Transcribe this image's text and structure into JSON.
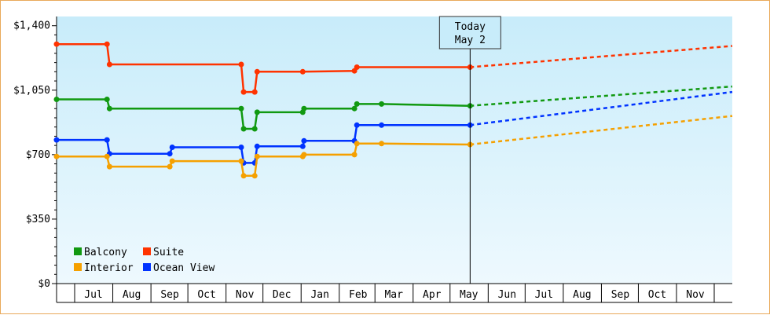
{
  "chart_data": {
    "type": "line",
    "today": {
      "line1": "Today",
      "line2": "May 2",
      "date": "2024-05-02"
    },
    "y_axis": {
      "min": 0,
      "max": 1450,
      "ticks": [
        0,
        350,
        700,
        1050,
        1400
      ],
      "tick_labels": [
        "$0",
        "$350",
        "$700",
        "$1,050",
        "$1,400"
      ]
    },
    "x_axis": {
      "range": [
        "2023-06-01",
        "2024-12-01"
      ],
      "months": [
        {
          "label": "Jul",
          "date": "2023-07-01"
        },
        {
          "label": "Aug",
          "date": "2023-08-01"
        },
        {
          "label": "Sep",
          "date": "2023-09-01"
        },
        {
          "label": "Oct",
          "date": "2023-10-01"
        },
        {
          "label": "Nov",
          "date": "2023-11-01"
        },
        {
          "label": "Dec",
          "date": "2023-12-01"
        },
        {
          "label": "Jan",
          "date": "2024-01-01"
        },
        {
          "label": "Feb",
          "date": "2024-02-01"
        },
        {
          "label": "Mar",
          "date": "2024-03-01"
        },
        {
          "label": "Apr",
          "date": "2024-04-01"
        },
        {
          "label": "May",
          "date": "2024-05-01"
        },
        {
          "label": "Jun",
          "date": "2024-06-01"
        },
        {
          "label": "Jul",
          "date": "2024-07-01"
        },
        {
          "label": "Aug",
          "date": "2024-08-01"
        },
        {
          "label": "Sep",
          "date": "2024-09-01"
        },
        {
          "label": "Oct",
          "date": "2024-10-01"
        },
        {
          "label": "Nov",
          "date": "2024-11-01"
        }
      ]
    },
    "legend": {
      "placement": "bottom-left"
    },
    "series": [
      {
        "name": "Suite",
        "color": "#ff3300",
        "points": [
          [
            "2023-06-01",
            1300
          ],
          [
            "2023-07-12",
            1300
          ],
          [
            "2023-07-14",
            1190
          ],
          [
            "2023-10-29",
            1190
          ],
          [
            "2023-10-31",
            1040
          ],
          [
            "2023-11-09",
            1040
          ],
          [
            "2023-11-11",
            1150
          ],
          [
            "2023-12-18",
            1150
          ],
          [
            "2024-01-29",
            1155
          ],
          [
            "2024-01-31",
            1175
          ],
          [
            "2024-05-02",
            1175
          ]
        ],
        "forecast": [
          [
            "2024-05-02",
            1175
          ],
          [
            "2024-12-01",
            1290
          ]
        ]
      },
      {
        "name": "Balcony",
        "color": "#119911",
        "points": [
          [
            "2023-06-01",
            1000
          ],
          [
            "2023-07-12",
            1000
          ],
          [
            "2023-07-14",
            950
          ],
          [
            "2023-10-29",
            950
          ],
          [
            "2023-10-31",
            840
          ],
          [
            "2023-11-09",
            840
          ],
          [
            "2023-11-11",
            930
          ],
          [
            "2023-12-18",
            930
          ],
          [
            "2023-12-19",
            950
          ],
          [
            "2024-01-29",
            950
          ],
          [
            "2024-01-31",
            975
          ],
          [
            "2024-02-20",
            975
          ],
          [
            "2024-05-02",
            965
          ]
        ],
        "forecast": [
          [
            "2024-05-02",
            965
          ],
          [
            "2024-12-01",
            1070
          ]
        ]
      },
      {
        "name": "Ocean View",
        "color": "#0033ff",
        "points": [
          [
            "2023-06-01",
            780
          ],
          [
            "2023-07-12",
            780
          ],
          [
            "2023-07-14",
            705
          ],
          [
            "2023-09-01",
            705
          ],
          [
            "2023-09-03",
            740
          ],
          [
            "2023-10-29",
            740
          ],
          [
            "2023-10-31",
            655
          ],
          [
            "2023-11-09",
            655
          ],
          [
            "2023-11-11",
            745
          ],
          [
            "2023-12-18",
            745
          ],
          [
            "2023-12-19",
            775
          ],
          [
            "2024-01-29",
            775
          ],
          [
            "2024-01-31",
            860
          ],
          [
            "2024-02-20",
            860
          ],
          [
            "2024-05-02",
            860
          ]
        ],
        "forecast": [
          [
            "2024-05-02",
            860
          ],
          [
            "2024-12-01",
            1040
          ]
        ]
      },
      {
        "name": "Interior",
        "color": "#f5a000",
        "points": [
          [
            "2023-06-01",
            690
          ],
          [
            "2023-07-12",
            690
          ],
          [
            "2023-07-14",
            635
          ],
          [
            "2023-09-01",
            635
          ],
          [
            "2023-09-03",
            665
          ],
          [
            "2023-10-29",
            665
          ],
          [
            "2023-10-31",
            585
          ],
          [
            "2023-11-09",
            585
          ],
          [
            "2023-11-11",
            690
          ],
          [
            "2023-12-18",
            690
          ],
          [
            "2023-12-19",
            700
          ],
          [
            "2024-01-29",
            700
          ],
          [
            "2024-01-31",
            760
          ],
          [
            "2024-02-20",
            760
          ],
          [
            "2024-05-02",
            755
          ]
        ],
        "forecast": [
          [
            "2024-05-02",
            755
          ],
          [
            "2024-12-01",
            910
          ]
        ]
      }
    ],
    "legend_entries": [
      {
        "name": "Balcony",
        "color": "#119911"
      },
      {
        "name": "Suite",
        "color": "#ff3300"
      },
      {
        "name": "Interior",
        "color": "#f5a000"
      },
      {
        "name": "Ocean View",
        "color": "#0033ff"
      }
    ],
    "colors": {
      "frame_border": "#e9a95a",
      "plot_bg_top": "#c8ecfa",
      "plot_bg_bottom": "#eef9fe",
      "axis": "#000000"
    }
  }
}
